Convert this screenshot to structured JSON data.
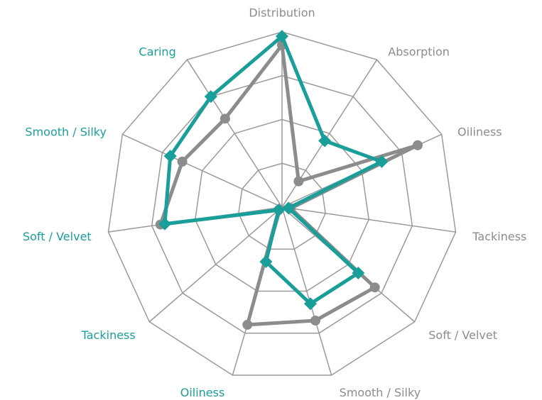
{
  "chart_data": {
    "type": "radar",
    "categories": [
      "Distribution",
      "Absorption",
      "Oiliness",
      "Tackiness",
      "Soft / Velvet",
      "Smooth / Silky",
      "Oiliness",
      "Tackiness",
      "Soft / Velvet",
      "Smooth / Silky",
      "Caring"
    ],
    "category_colors": [
      "#8c8c8c",
      "#8c8c8c",
      "#8c8c8c",
      "#8c8c8c",
      "#8c8c8c",
      "#8c8c8c",
      "#1a9e9a",
      "#1a9e9a",
      "#1a9e9a",
      "#1a9e9a",
      "#1a9e9a"
    ],
    "series": [
      {
        "color": "#8c8c8c",
        "marker": "circle",
        "values": [
          3.7,
          0.7,
          3.4,
          0.2,
          2.8,
          2.7,
          2.8,
          0.1,
          2.8,
          2.5,
          2.4
        ]
      },
      {
        "color": "#1a9e9a",
        "marker": "diamond",
        "values": [
          3.9,
          1.8,
          2.5,
          0.15,
          2.3,
          2.3,
          1.3,
          0.1,
          2.7,
          2.8,
          3.0
        ]
      }
    ],
    "ylim": [
      0,
      4
    ],
    "yticks": [
      1,
      2,
      3,
      4
    ],
    "grid": true
  }
}
